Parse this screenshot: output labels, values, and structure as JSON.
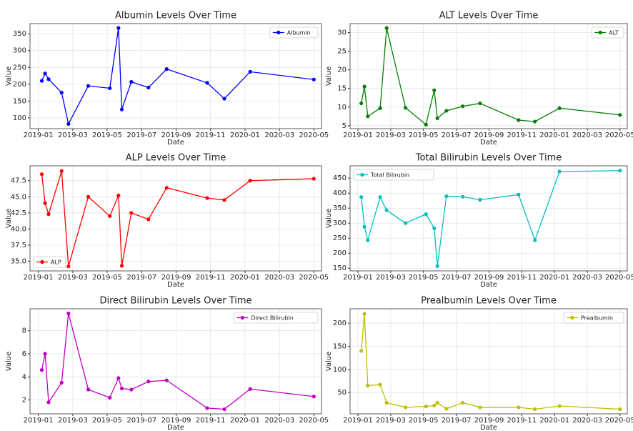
{
  "chart_data": [
    {
      "type": "line",
      "title": "Albumin Levels Over Time",
      "xlabel": "Date",
      "ylabel": "Value",
      "x": [
        2019.017,
        2019.033,
        2019.05,
        2019.113,
        2019.146,
        2019.242,
        2019.346,
        2019.388,
        2019.404,
        2019.45,
        2019.533,
        2019.621,
        2019.817,
        2019.9,
        2020.025,
        2020.333
      ],
      "series": [
        {
          "name": "Albumin",
          "color": "#0000ff",
          "values": [
            210,
            232,
            215,
            175,
            82,
            195,
            188,
            367,
            125,
            207,
            190,
            245,
            204,
            157,
            237,
            214
          ]
        }
      ],
      "xlim": [
        2018.96,
        2020.37
      ],
      "xticks": [
        {
          "value": 2019,
          "label": "2019-01"
        },
        {
          "value": 2019.167,
          "label": "2019-03"
        },
        {
          "value": 2019.333,
          "label": "2019-05"
        },
        {
          "value": 2019.5,
          "label": "2019-07"
        },
        {
          "value": 2019.667,
          "label": "2019-09"
        },
        {
          "value": 2019.833,
          "label": "2019-11"
        },
        {
          "value": 2020,
          "label": "2020-01"
        },
        {
          "value": 2020.167,
          "label": "2020-03"
        },
        {
          "value": 2020.333,
          "label": "2020-05"
        }
      ],
      "ylim": [
        68,
        380
      ],
      "yticks": [
        100,
        150,
        200,
        250,
        300,
        350
      ],
      "grid": true,
      "legend": "upper right"
    },
    {
      "type": "line",
      "title": "ALT Levels Over Time",
      "xlabel": "Date",
      "ylabel": "Value",
      "x": [
        2019.017,
        2019.033,
        2019.05,
        2019.113,
        2019.146,
        2019.242,
        2019.346,
        2019.388,
        2019.404,
        2019.45,
        2019.533,
        2019.621,
        2019.817,
        2019.9,
        2020.025,
        2020.333
      ],
      "series": [
        {
          "name": "ALT",
          "color": "#008000",
          "values": [
            11,
            15.5,
            7.5,
            9.7,
            31.2,
            9.8,
            5.3,
            14.5,
            7,
            9,
            10.2,
            11,
            6.5,
            6.1,
            9.7,
            7.9
          ]
        }
      ],
      "xlim": [
        2018.96,
        2020.37
      ],
      "xticks": [
        {
          "value": 2019,
          "label": "2019-01"
        },
        {
          "value": 2019.167,
          "label": "2019-03"
        },
        {
          "value": 2019.333,
          "label": "2019-05"
        },
        {
          "value": 2019.5,
          "label": "2019-07"
        },
        {
          "value": 2019.667,
          "label": "2019-09"
        },
        {
          "value": 2019.833,
          "label": "2019-11"
        },
        {
          "value": 2020,
          "label": "2020-01"
        },
        {
          "value": 2020.167,
          "label": "2020-03"
        },
        {
          "value": 2020.333,
          "label": "2020-05"
        }
      ],
      "ylim": [
        4.2,
        32.4
      ],
      "yticks": [
        5,
        10,
        15,
        20,
        25,
        30
      ],
      "grid": true,
      "legend": "upper right"
    },
    {
      "type": "line",
      "title": "ALP Levels Over Time",
      "xlabel": "Date",
      "ylabel": "Value",
      "x": [
        2019.017,
        2019.033,
        2019.05,
        2019.113,
        2019.146,
        2019.242,
        2019.346,
        2019.388,
        2019.404,
        2019.45,
        2019.533,
        2019.621,
        2019.817,
        2019.9,
        2020.025,
        2020.333
      ],
      "series": [
        {
          "name": "ALP",
          "color": "#ff0000",
          "values": [
            48.5,
            44,
            42.3,
            49,
            34.2,
            45,
            42,
            45.2,
            34.3,
            42.5,
            41.5,
            46.4,
            44.8,
            44.5,
            47.5,
            47.8
          ]
        }
      ],
      "xlim": [
        2018.96,
        2020.37
      ],
      "xticks": [
        {
          "value": 2019,
          "label": "2019-01"
        },
        {
          "value": 2019.167,
          "label": "2019-03"
        },
        {
          "value": 2019.333,
          "label": "2019-05"
        },
        {
          "value": 2019.5,
          "label": "2019-07"
        },
        {
          "value": 2019.667,
          "label": "2019-09"
        },
        {
          "value": 2019.833,
          "label": "2019-11"
        },
        {
          "value": 2020,
          "label": "2020-01"
        },
        {
          "value": 2020.167,
          "label": "2020-03"
        },
        {
          "value": 2020.333,
          "label": "2020-05"
        }
      ],
      "ylim": [
        33.5,
        49.8
      ],
      "yticks": [
        {
          "value": 35,
          "label": "35.0"
        },
        37.5,
        {
          "value": 40,
          "label": "40.0"
        },
        42.5,
        {
          "value": 45,
          "label": "45.0"
        },
        47.5
      ],
      "grid": true,
      "legend": "lower left"
    },
    {
      "type": "line",
      "title": "Total Bilirubin Levels Over Time",
      "xlabel": "Date",
      "ylabel": "Value",
      "x": [
        2019.017,
        2019.033,
        2019.05,
        2019.113,
        2019.146,
        2019.242,
        2019.346,
        2019.388,
        2019.404,
        2019.45,
        2019.533,
        2019.621,
        2019.817,
        2019.9,
        2020.025,
        2020.333
      ],
      "series": [
        {
          "name": "Total Bilirubin",
          "color": "#00bfbf",
          "values": [
            387,
            288,
            243,
            387,
            343,
            300,
            330,
            283,
            157,
            390,
            388,
            378,
            395,
            243,
            472,
            475
          ]
        }
      ],
      "xlim": [
        2018.96,
        2020.37
      ],
      "xticks": [
        {
          "value": 2019,
          "label": "2019-01"
        },
        {
          "value": 2019.167,
          "label": "2019-03"
        },
        {
          "value": 2019.333,
          "label": "2019-05"
        },
        {
          "value": 2019.5,
          "label": "2019-07"
        },
        {
          "value": 2019.667,
          "label": "2019-09"
        },
        {
          "value": 2019.833,
          "label": "2019-11"
        },
        {
          "value": 2020,
          "label": "2020-01"
        },
        {
          "value": 2020.167,
          "label": "2020-03"
        },
        {
          "value": 2020.333,
          "label": "2020-05"
        }
      ],
      "ylim": [
        141,
        491
      ],
      "yticks": [
        150,
        200,
        250,
        300,
        350,
        400,
        450
      ],
      "grid": true,
      "legend": "upper left"
    },
    {
      "type": "line",
      "title": "Direct Bilirubin Levels Over Time",
      "xlabel": "Date",
      "ylabel": "Value",
      "x": [
        2019.017,
        2019.033,
        2019.05,
        2019.113,
        2019.146,
        2019.242,
        2019.346,
        2019.388,
        2019.404,
        2019.45,
        2019.533,
        2019.621,
        2019.817,
        2019.9,
        2020.025,
        2020.333
      ],
      "series": [
        {
          "name": "Direct Bilirubin",
          "color": "#bf00bf",
          "values": [
            4.6,
            6,
            1.8,
            3.5,
            9.5,
            2.9,
            2.2,
            3.9,
            3,
            2.9,
            3.6,
            3.7,
            1.3,
            1.2,
            2.95,
            2.3
          ]
        }
      ],
      "xlim": [
        2018.96,
        2020.37
      ],
      "xticks": [
        {
          "value": 2019,
          "label": "2019-01"
        },
        {
          "value": 2019.167,
          "label": "2019-03"
        },
        {
          "value": 2019.333,
          "label": "2019-05"
        },
        {
          "value": 2019.5,
          "label": "2019-07"
        },
        {
          "value": 2019.667,
          "label": "2019-09"
        },
        {
          "value": 2019.833,
          "label": "2019-11"
        },
        {
          "value": 2020,
          "label": "2020-01"
        },
        {
          "value": 2020.167,
          "label": "2020-03"
        },
        {
          "value": 2020.333,
          "label": "2020-05"
        }
      ],
      "ylim": [
        0.8,
        9.9
      ],
      "yticks": [
        2,
        4,
        6,
        8
      ],
      "grid": true,
      "legend": "upper right"
    },
    {
      "type": "line",
      "title": "Prealbumin Levels Over Time",
      "xlabel": "Date",
      "ylabel": "Value",
      "x": [
        2019.017,
        2019.033,
        2019.05,
        2019.113,
        2019.146,
        2019.242,
        2019.346,
        2019.388,
        2019.404,
        2019.45,
        2019.533,
        2019.621,
        2019.817,
        2019.9,
        2020.025,
        2020.333
      ],
      "series": [
        {
          "name": "Prealbumin",
          "color": "#bfbf00",
          "values": [
            140,
            220,
            65,
            67,
            28,
            18,
            20,
            22,
            28,
            15,
            28,
            18,
            18,
            14,
            21,
            14
          ]
        }
      ],
      "xlim": [
        2018.96,
        2020.37
      ],
      "xticks": [
        {
          "value": 2019,
          "label": "2019-01"
        },
        {
          "value": 2019.167,
          "label": "2019-03"
        },
        {
          "value": 2019.333,
          "label": "2019-05"
        },
        {
          "value": 2019.5,
          "label": "2019-07"
        },
        {
          "value": 2019.667,
          "label": "2019-09"
        },
        {
          "value": 2019.833,
          "label": "2019-11"
        },
        {
          "value": 2020,
          "label": "2020-01"
        },
        {
          "value": 2020.167,
          "label": "2020-03"
        },
        {
          "value": 2020.333,
          "label": "2020-05"
        }
      ],
      "ylim": [
        4,
        231
      ],
      "yticks": [
        50,
        100,
        150,
        200
      ],
      "grid": true,
      "legend": "upper right"
    }
  ]
}
